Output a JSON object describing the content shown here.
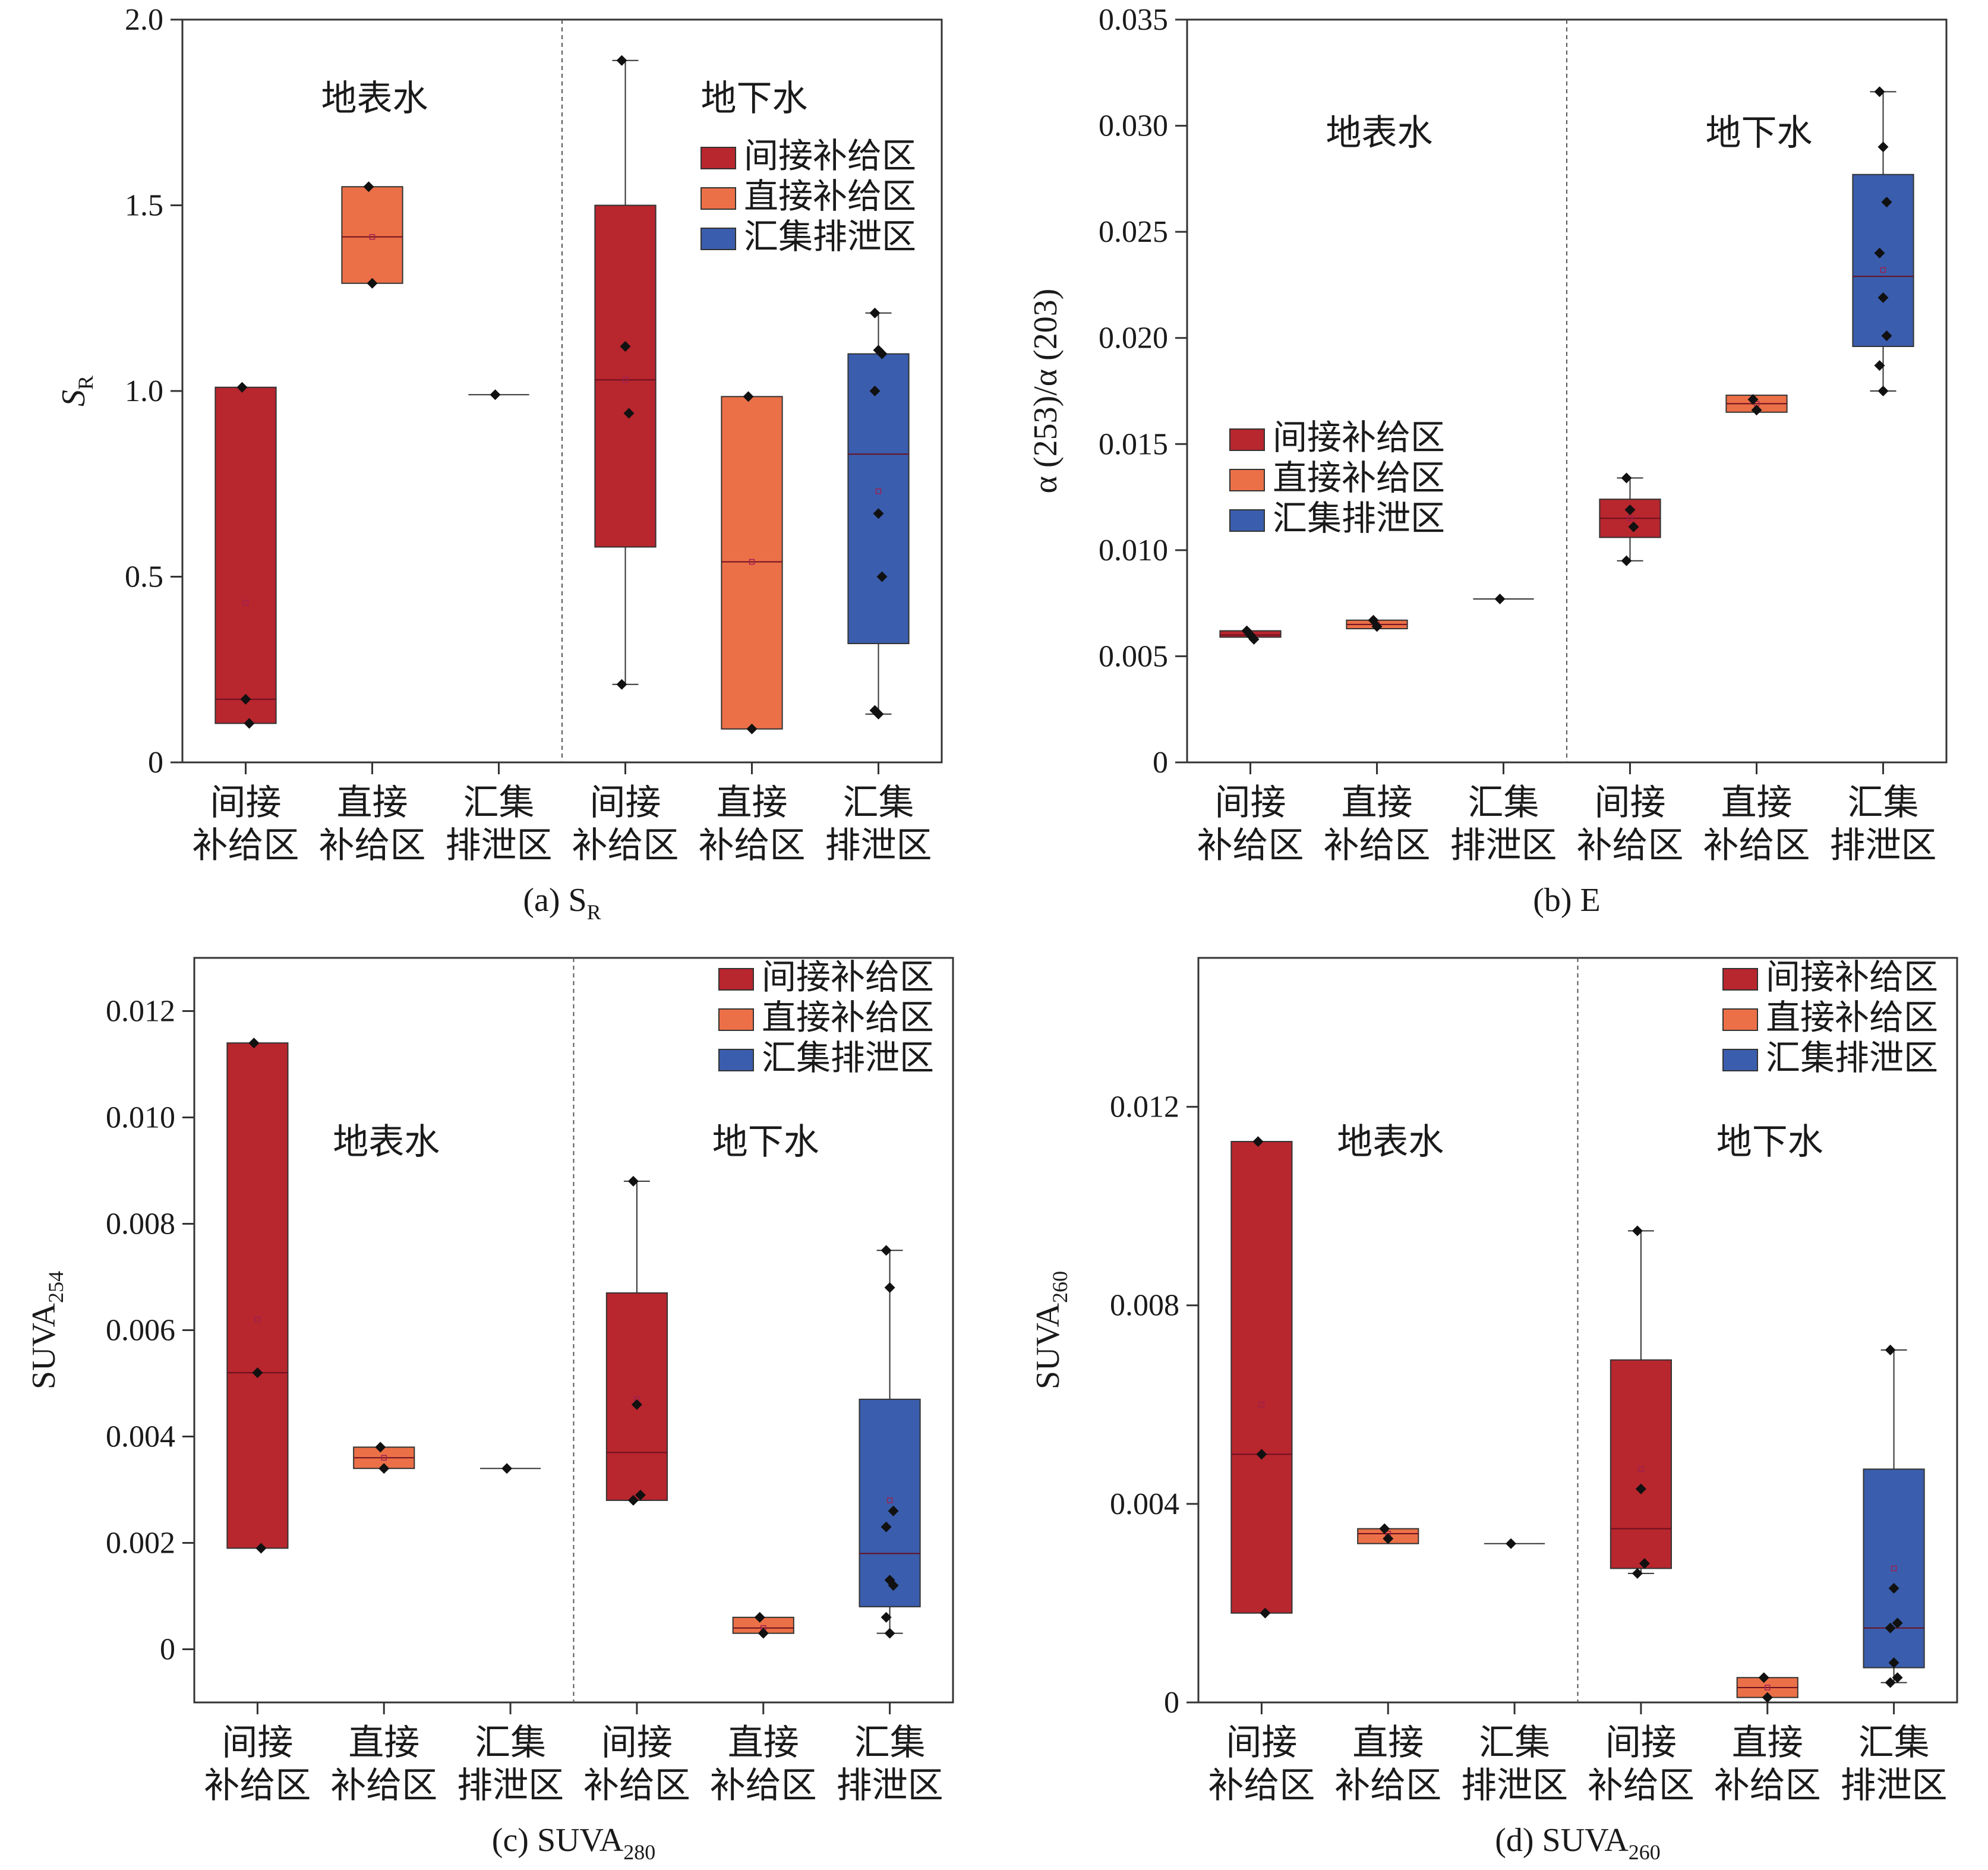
{
  "chart_data": [
    {
      "id": "a",
      "type": "box",
      "caption": "(a) S",
      "caption_sub": "R",
      "ylabel": "S",
      "ylabel_sub": "R",
      "ylabel_italic": true,
      "ylim": [
        0,
        2.0
      ],
      "yticks": [
        0,
        0.5,
        1.0,
        1.5,
        2.0
      ],
      "ytick_labels": [
        "0",
        "0.5",
        "1.0",
        "1.5",
        "2.0"
      ],
      "group_labels": [
        "地表水",
        "地下水"
      ],
      "legend_position": "right, below 地下水",
      "categories": [
        [
          "间接",
          "补给区"
        ],
        [
          "直接",
          "补给区"
        ],
        [
          "汇集",
          "排泄区"
        ],
        [
          "间接",
          "补给区"
        ],
        [
          "直接",
          "补给区"
        ],
        [
          "汇集",
          "排泄区"
        ]
      ],
      "boxes": [
        {
          "category": "间接补给区",
          "group": "地表水",
          "q1": 0.105,
          "median": 0.17,
          "q3": 1.01,
          "mean": 0.43,
          "points": [
            1.01,
            0.17,
            0.105
          ]
        },
        {
          "category": "直接补给区",
          "group": "地表水",
          "q1": 1.29,
          "median": 1.415,
          "q3": 1.55,
          "mean": 1.415,
          "points": [
            1.55,
            1.29
          ]
        },
        {
          "category": "汇集排泄区",
          "group": "地表水",
          "q1": 0.99,
          "median": 0.99,
          "q3": 0.99,
          "points": [
            0.99
          ]
        },
        {
          "category": "间接补给区",
          "group": "地下水",
          "whisker_low": 0.21,
          "q1": 0.58,
          "median": 1.03,
          "q3": 1.5,
          "whisker_high": 1.89,
          "mean": 1.03,
          "points": [
            1.89,
            1.12,
            0.94,
            0.21
          ]
        },
        {
          "category": "直接补给区",
          "group": "地下水",
          "q1": 0.09,
          "median": 0.54,
          "q3": 0.985,
          "mean": 0.54,
          "points": [
            0.985,
            0.09
          ]
        },
        {
          "category": "汇集排泄区",
          "group": "地下水",
          "whisker_low": 0.13,
          "q1": 0.32,
          "median": 0.83,
          "q3": 1.1,
          "whisker_high": 1.21,
          "mean": 0.73,
          "points": [
            1.21,
            1.11,
            1.1,
            1.0,
            0.67,
            0.5,
            0.14,
            0.13
          ]
        }
      ]
    },
    {
      "id": "b",
      "type": "box",
      "caption": "(b) E",
      "caption_sub": "",
      "ylabel": "α (253)/α (203)",
      "ylabel_sub": "",
      "ylabel_italic": false,
      "ylim": [
        0,
        0.035
      ],
      "yticks": [
        0,
        0.005,
        0.01,
        0.015,
        0.02,
        0.025,
        0.03,
        0.035
      ],
      "ytick_labels": [
        "0",
        "0.005",
        "0.010",
        "0.015",
        "0.020",
        "0.025",
        "0.030",
        "0.035"
      ],
      "group_labels": [
        "地表水",
        "地下水"
      ],
      "legend_position": "left-middle",
      "categories": [
        [
          "间接",
          "补给区"
        ],
        [
          "直接",
          "补给区"
        ],
        [
          "汇集",
          "排泄区"
        ],
        [
          "间接",
          "补给区"
        ],
        [
          "直接",
          "补给区"
        ],
        [
          "汇集",
          "排泄区"
        ]
      ],
      "boxes": [
        {
          "category": "间接补给区",
          "group": "地表水",
          "q1": 0.0059,
          "median": 0.006,
          "q3": 0.0062,
          "mean": 0.006,
          "points": [
            0.0062,
            0.006,
            0.0058
          ]
        },
        {
          "category": "直接补给区",
          "group": "地表水",
          "q1": 0.0063,
          "median": 0.0065,
          "q3": 0.0067,
          "mean": 0.0065,
          "points": [
            0.0067,
            0.0064
          ]
        },
        {
          "category": "汇集排泄区",
          "group": "地表水",
          "q1": 0.0077,
          "median": 0.0077,
          "q3": 0.0077,
          "points": [
            0.0077
          ]
        },
        {
          "category": "间接补给区",
          "group": "地下水",
          "whisker_low": 0.0095,
          "q1": 0.0106,
          "median": 0.0115,
          "q3": 0.0124,
          "whisker_high": 0.0134,
          "mean": 0.0115,
          "points": [
            0.0134,
            0.0119,
            0.0111,
            0.0095
          ]
        },
        {
          "category": "直接补给区",
          "group": "地下水",
          "q1": 0.0165,
          "median": 0.0169,
          "q3": 0.0173,
          "mean": 0.0169,
          "points": [
            0.0171,
            0.0166
          ]
        },
        {
          "category": "汇集排泄区",
          "group": "地下水",
          "whisker_low": 0.0175,
          "q1": 0.0196,
          "median": 0.0229,
          "q3": 0.0277,
          "whisker_high": 0.0316,
          "mean": 0.0232,
          "points": [
            0.0316,
            0.029,
            0.0264,
            0.024,
            0.0219,
            0.0201,
            0.0187,
            0.0175
          ]
        }
      ]
    },
    {
      "id": "c",
      "type": "box",
      "caption": "(c) SUVA",
      "caption_sub": "280",
      "ylabel": "SUVA",
      "ylabel_sub": "254",
      "ylabel_italic": false,
      "ylim": [
        -0.001,
        0.013
      ],
      "yticks": [
        0,
        0.002,
        0.004,
        0.006,
        0.008,
        0.01,
        0.012
      ],
      "ytick_labels": [
        "0",
        "0.002",
        "0.004",
        "0.006",
        "0.008",
        "0.010",
        "0.012"
      ],
      "group_labels": [
        "地表水",
        "地下水"
      ],
      "legend_position": "top-right",
      "categories": [
        [
          "间接",
          "补给区"
        ],
        [
          "直接",
          "补给区"
        ],
        [
          "汇集",
          "排泄区"
        ],
        [
          "间接",
          "补给区"
        ],
        [
          "直接",
          "补给区"
        ],
        [
          "汇集",
          "排泄区"
        ]
      ],
      "boxes": [
        {
          "category": "间接补给区",
          "group": "地表水",
          "q1": 0.0019,
          "median": 0.0052,
          "q3": 0.0114,
          "mean": 0.0062,
          "points": [
            0.0114,
            0.0052,
            0.0019
          ]
        },
        {
          "category": "直接补给区",
          "group": "地表水",
          "q1": 0.0034,
          "median": 0.0036,
          "q3": 0.0038,
          "mean": 0.0036,
          "points": [
            0.0038,
            0.0034
          ]
        },
        {
          "category": "汇集排泄区",
          "group": "地表水",
          "q1": 0.0034,
          "median": 0.0034,
          "q3": 0.0034,
          "points": [
            0.0034
          ]
        },
        {
          "category": "间接补给区",
          "group": "地下水",
          "whisker_low": 0.0028,
          "q1": 0.0028,
          "median": 0.0037,
          "q3": 0.0067,
          "whisker_high": 0.0088,
          "mean": 0.0047,
          "points": [
            0.0088,
            0.0046,
            0.0029,
            0.0028
          ]
        },
        {
          "category": "直接补给区",
          "group": "地下水",
          "q1": 0.0003,
          "median": 0.0004,
          "q3": 0.0006,
          "mean": 0.0004,
          "points": [
            0.0006,
            0.0003
          ]
        },
        {
          "category": "汇集排泄区",
          "group": "地下水",
          "whisker_low": 0.0003,
          "q1": 0.0008,
          "median": 0.0018,
          "q3": 0.0047,
          "whisker_high": 0.0075,
          "mean": 0.0028,
          "points": [
            0.0075,
            0.0068,
            0.0026,
            0.0023,
            0.0013,
            0.0012,
            0.0006,
            0.0003
          ]
        }
      ]
    },
    {
      "id": "d",
      "type": "box",
      "caption": "(d) SUVA",
      "caption_sub": "260",
      "ylabel": "SUVA",
      "ylabel_sub": "260",
      "ylabel_italic": false,
      "ylim": [
        0,
        0.015
      ],
      "yticks": [
        0,
        0.004,
        0.008,
        0.012
      ],
      "ytick_labels": [
        "0",
        "0.004",
        "0.008",
        "0.012"
      ],
      "group_labels": [
        "地表水",
        "地下水"
      ],
      "legend_position": "top-right",
      "categories": [
        [
          "间接",
          "补给区"
        ],
        [
          "直接",
          "补给区"
        ],
        [
          "汇集",
          "排泄区"
        ],
        [
          "间接",
          "补给区"
        ],
        [
          "直接",
          "补给区"
        ],
        [
          "汇集",
          "排泄区"
        ]
      ],
      "boxes": [
        {
          "category": "间接补给区",
          "group": "地表水",
          "q1": 0.0018,
          "median": 0.005,
          "q3": 0.0113,
          "mean": 0.006,
          "points": [
            0.0113,
            0.005,
            0.0018
          ]
        },
        {
          "category": "直接补给区",
          "group": "地表水",
          "q1": 0.0032,
          "median": 0.0034,
          "q3": 0.0035,
          "mean": 0.0034,
          "points": [
            0.0035,
            0.0033
          ]
        },
        {
          "category": "汇集排泄区",
          "group": "地表水",
          "q1": 0.0032,
          "median": 0.0032,
          "q3": 0.0032,
          "points": [
            0.0032
          ]
        },
        {
          "category": "间接补给区",
          "group": "地下水",
          "whisker_low": 0.0026,
          "q1": 0.0027,
          "median": 0.0035,
          "q3": 0.0069,
          "whisker_high": 0.0095,
          "mean": 0.0047,
          "points": [
            0.0095,
            0.0043,
            0.0028,
            0.0026
          ]
        },
        {
          "category": "直接补给区",
          "group": "地下水",
          "q1": 0.0001,
          "median": 0.0003,
          "q3": 0.0005,
          "mean": 0.0003,
          "points": [
            0.0005,
            0.0001
          ]
        },
        {
          "category": "汇集排泄区",
          "group": "地下水",
          "whisker_low": 0.0004,
          "q1": 0.0007,
          "median": 0.0015,
          "q3": 0.0047,
          "whisker_high": 0.0071,
          "mean": 0.0027,
          "points": [
            0.0071,
            0.0023,
            0.0016,
            0.0015,
            0.0008,
            0.0005,
            0.0004
          ]
        }
      ]
    }
  ],
  "legend": [
    {
      "label": "间接补给区",
      "color": "#b8262e"
    },
    {
      "label": "直接补给区",
      "color": "#ec7047"
    },
    {
      "label": "汇集排泄区",
      "color": "#3a5ead"
    }
  ]
}
